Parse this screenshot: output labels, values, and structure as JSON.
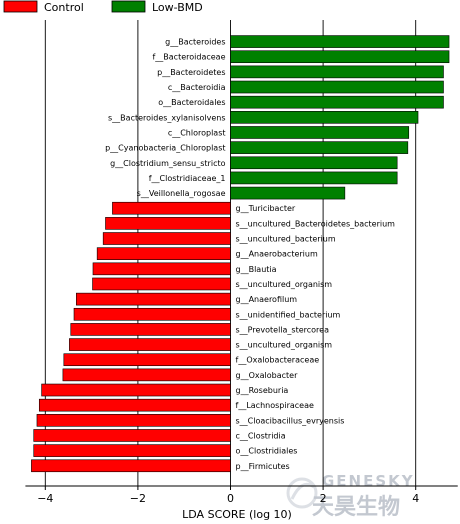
{
  "chart_data": {
    "type": "bar",
    "orientation": "horizontal",
    "xlabel": "LDA SCORE (log 10)",
    "xlim": [
      -4.3,
      4.8
    ],
    "xticks": [
      -4,
      -2,
      0,
      2,
      4
    ],
    "xtick_labels": [
      "−4",
      "−2",
      "0",
      "2",
      "4"
    ],
    "grid": "vertical",
    "legend_position": "top-left",
    "series": [
      {
        "name": "Control",
        "color": "#ff0000"
      },
      {
        "name": "Low-BMD",
        "color": "#008000"
      }
    ],
    "bars": [
      {
        "label": "g__Bacteroides",
        "value": 4.72,
        "group": "Low-BMD"
      },
      {
        "label": "f__Bacteroidaceae",
        "value": 4.72,
        "group": "Low-BMD"
      },
      {
        "label": "p__Bacteroidetes",
        "value": 4.6,
        "group": "Low-BMD"
      },
      {
        "label": "c__Bacteroidia",
        "value": 4.6,
        "group": "Low-BMD"
      },
      {
        "label": "o__Bacteroidales",
        "value": 4.6,
        "group": "Low-BMD"
      },
      {
        "label": "s__Bacteroides_xylanisolvens",
        "value": 4.05,
        "group": "Low-BMD"
      },
      {
        "label": "c__Chloroplast",
        "value": 3.85,
        "group": "Low-BMD"
      },
      {
        "label": "p__Cyanobacteria_Chloroplast",
        "value": 3.83,
        "group": "Low-BMD"
      },
      {
        "label": "g__Clostridium_sensu_stricto",
        "value": 3.6,
        "group": "Low-BMD"
      },
      {
        "label": "f__Clostridiaceae_1",
        "value": 3.6,
        "group": "Low-BMD"
      },
      {
        "label": "s__Veillonella_rogosae",
        "value": 2.47,
        "group": "Low-BMD"
      },
      {
        "label": "g__Turicibacter",
        "value": -2.55,
        "group": "Control"
      },
      {
        "label": "s__uncultured_Bacteroidetes_bacterium",
        "value": -2.7,
        "group": "Control"
      },
      {
        "label": "s__uncultured_bacterium",
        "value": -2.75,
        "group": "Control"
      },
      {
        "label": "g__Anaerobacterium",
        "value": -2.88,
        "group": "Control"
      },
      {
        "label": "g__Blautia",
        "value": -2.97,
        "group": "Control"
      },
      {
        "label": "s__uncultured_organism",
        "value": -2.98,
        "group": "Control"
      },
      {
        "label": "g__Anaerofilum",
        "value": -3.33,
        "group": "Control"
      },
      {
        "label": "s__unidentified_bacterium",
        "value": -3.38,
        "group": "Control"
      },
      {
        "label": "s__Prevotella_stercorea",
        "value": -3.45,
        "group": "Control"
      },
      {
        "label": "s__uncultured_organism",
        "value": -3.48,
        "group": "Control"
      },
      {
        "label": "f__Oxalobacteraceae",
        "value": -3.6,
        "group": "Control"
      },
      {
        "label": "g__Oxalobacter",
        "value": -3.62,
        "group": "Control"
      },
      {
        "label": "g__Roseburia",
        "value": -4.08,
        "group": "Control"
      },
      {
        "label": "f__Lachnospiraceae",
        "value": -4.13,
        "group": "Control"
      },
      {
        "label": "s__Cloacibacillus_evryensis",
        "value": -4.18,
        "group": "Control"
      },
      {
        "label": "c__Clostridia",
        "value": -4.25,
        "group": "Control"
      },
      {
        "label": "o__Clostridiales",
        "value": -4.25,
        "group": "Control"
      },
      {
        "label": "p__Firmicutes",
        "value": -4.3,
        "group": "Control"
      }
    ]
  },
  "watermark": {
    "brand_en": "GENESKY",
    "brand_cn": "天昊生物"
  }
}
